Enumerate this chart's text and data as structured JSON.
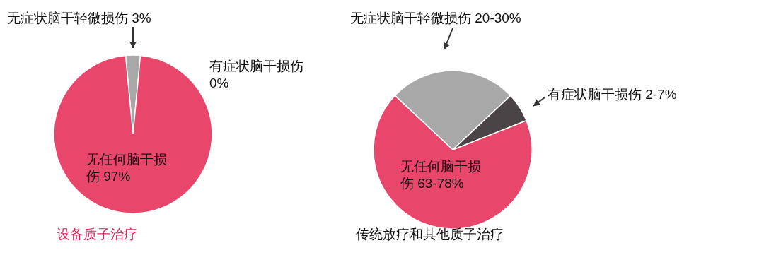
{
  "chart_data": [
    {
      "type": "pie",
      "title": "设备质子治疗",
      "categories": [
        "无症状脑干轻微损伤",
        "有症状脑干损伤",
        "无任何脑干损伤"
      ],
      "values": [
        3,
        0,
        97
      ],
      "value_labels": [
        "3%",
        "0%",
        "97%"
      ],
      "colors": [
        "#a8a8a8",
        "#4a4446",
        "#e8466b"
      ]
    },
    {
      "type": "pie",
      "title": "传统放疗和其他质子治疗",
      "categories": [
        "无症状脑干轻微损伤 20-30%",
        "有症状脑干损伤 2-7%",
        "无任何脑干损伤 63-78%"
      ],
      "values": [
        26,
        6,
        68
      ],
      "colors": [
        "#a8a8a8",
        "#4a4446",
        "#e8466b"
      ]
    }
  ]
}
